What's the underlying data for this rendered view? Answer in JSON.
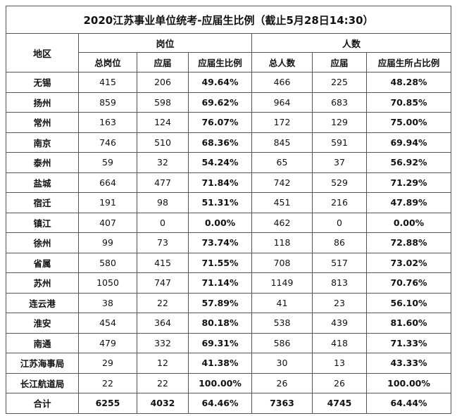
{
  "title": "2020江苏事业单位统考-应届生比例（截止5月28日14:30）",
  "headers": {
    "region": "地区",
    "group_posts": "岗位",
    "group_people": "人数",
    "total_posts": "总岗位",
    "fresh_posts": "应届",
    "ratio_posts": "应届生比例",
    "total_people": "总人数",
    "fresh_people": "应届",
    "ratio_people": "应届生所占比例"
  },
  "rows": [
    {
      "region": "无锡",
      "total_posts": "415",
      "fresh_posts": "206",
      "ratio_posts": "49.64%",
      "total_people": "466",
      "fresh_people": "225",
      "ratio_people": "48.28%"
    },
    {
      "region": "扬州",
      "total_posts": "859",
      "fresh_posts": "598",
      "ratio_posts": "69.62%",
      "total_people": "964",
      "fresh_people": "683",
      "ratio_people": "70.85%"
    },
    {
      "region": "常州",
      "total_posts": "163",
      "fresh_posts": "124",
      "ratio_posts": "76.07%",
      "total_people": "172",
      "fresh_people": "129",
      "ratio_people": "75.00%"
    },
    {
      "region": "南京",
      "total_posts": "746",
      "fresh_posts": "510",
      "ratio_posts": "68.36%",
      "total_people": "845",
      "fresh_people": "591",
      "ratio_people": "69.94%"
    },
    {
      "region": "泰州",
      "total_posts": "59",
      "fresh_posts": "32",
      "ratio_posts": "54.24%",
      "total_people": "65",
      "fresh_people": "37",
      "ratio_people": "56.92%"
    },
    {
      "region": "盐城",
      "total_posts": "664",
      "fresh_posts": "477",
      "ratio_posts": "71.84%",
      "total_people": "742",
      "fresh_people": "529",
      "ratio_people": "71.29%"
    },
    {
      "region": "宿迁",
      "total_posts": "191",
      "fresh_posts": "98",
      "ratio_posts": "51.31%",
      "total_people": "451",
      "fresh_people": "216",
      "ratio_people": "47.89%"
    },
    {
      "region": "镇江",
      "total_posts": "407",
      "fresh_posts": "0",
      "ratio_posts": "0.00%",
      "total_people": "462",
      "fresh_people": "0",
      "ratio_people": "0.00%"
    },
    {
      "region": "徐州",
      "total_posts": "99",
      "fresh_posts": "73",
      "ratio_posts": "73.74%",
      "total_people": "118",
      "fresh_people": "86",
      "ratio_people": "72.88%"
    },
    {
      "region": "省属",
      "total_posts": "580",
      "fresh_posts": "415",
      "ratio_posts": "71.55%",
      "total_people": "708",
      "fresh_people": "517",
      "ratio_people": "73.02%"
    },
    {
      "region": "苏州",
      "total_posts": "1050",
      "fresh_posts": "747",
      "ratio_posts": "71.14%",
      "total_people": "1149",
      "fresh_people": "813",
      "ratio_people": "70.76%"
    },
    {
      "region": "连云港",
      "total_posts": "38",
      "fresh_posts": "22",
      "ratio_posts": "57.89%",
      "total_people": "41",
      "fresh_people": "23",
      "ratio_people": "56.10%"
    },
    {
      "region": "淮安",
      "total_posts": "454",
      "fresh_posts": "364",
      "ratio_posts": "80.18%",
      "total_people": "538",
      "fresh_people": "439",
      "ratio_people": "81.60%"
    },
    {
      "region": "南通",
      "total_posts": "479",
      "fresh_posts": "332",
      "ratio_posts": "69.31%",
      "total_people": "586",
      "fresh_people": "418",
      "ratio_people": "71.33%"
    },
    {
      "region": "江苏海事局",
      "total_posts": "29",
      "fresh_posts": "12",
      "ratio_posts": "41.38%",
      "total_people": "30",
      "fresh_people": "13",
      "ratio_people": "43.33%"
    },
    {
      "region": "长江航道局",
      "total_posts": "22",
      "fresh_posts": "22",
      "ratio_posts": "100.00%",
      "total_people": "26",
      "fresh_people": "26",
      "ratio_people": "100.00%"
    }
  ],
  "total": {
    "region": "合计",
    "total_posts": "6255",
    "fresh_posts": "4032",
    "ratio_posts": "64.46%",
    "total_people": "7363",
    "fresh_people": "4745",
    "ratio_people": "64.44%"
  }
}
